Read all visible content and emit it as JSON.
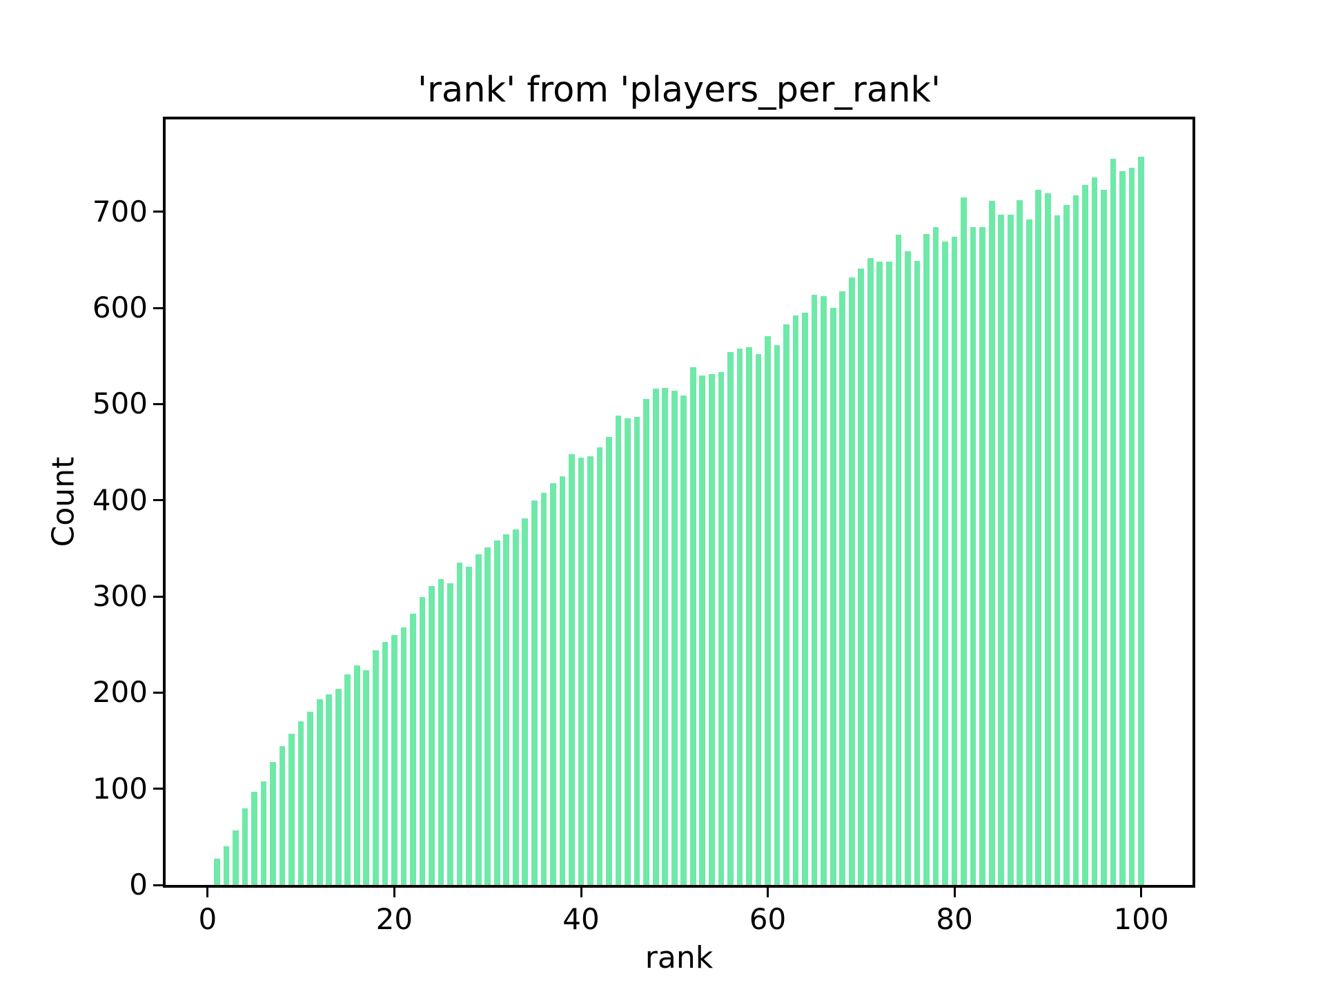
{
  "figure": {
    "background_color": "#ffffff",
    "text_color": "#000000"
  },
  "chart_data": {
    "type": "bar",
    "title": "'rank' from 'players_per_rank'",
    "xlabel": "rank",
    "ylabel": "Count",
    "bar_color": "#6ee9a8",
    "grid": false,
    "legend": null,
    "xlim": [
      -4.5,
      105.5
    ],
    "ylim": [
      0,
      796
    ],
    "x_ticks": [
      0,
      20,
      40,
      60,
      80,
      100
    ],
    "y_ticks": [
      0,
      100,
      200,
      300,
      400,
      500,
      600,
      700
    ],
    "bar_width_units": 0.65,
    "x": [
      1,
      2,
      3,
      4,
      5,
      6,
      7,
      8,
      9,
      10,
      11,
      12,
      13,
      14,
      15,
      16,
      17,
      18,
      19,
      20,
      21,
      22,
      23,
      24,
      25,
      26,
      27,
      28,
      29,
      30,
      31,
      32,
      33,
      34,
      35,
      36,
      37,
      38,
      39,
      40,
      41,
      42,
      43,
      44,
      45,
      46,
      47,
      48,
      49,
      50,
      51,
      52,
      53,
      54,
      55,
      56,
      57,
      58,
      59,
      60,
      61,
      62,
      63,
      64,
      65,
      66,
      67,
      68,
      69,
      70,
      71,
      72,
      73,
      74,
      75,
      76,
      77,
      78,
      79,
      80,
      81,
      82,
      83,
      84,
      85,
      86,
      87,
      88,
      89,
      90,
      91,
      92,
      93,
      94,
      95,
      96,
      97,
      98,
      99,
      100
    ],
    "values": [
      27,
      40,
      57,
      80,
      97,
      108,
      128,
      144,
      157,
      170,
      180,
      193,
      198,
      204,
      219,
      228,
      223,
      244,
      253,
      260,
      268,
      282,
      299,
      311,
      318,
      314,
      335,
      331,
      344,
      351,
      358,
      365,
      370,
      381,
      400,
      408,
      418,
      425,
      448,
      444,
      446,
      455,
      466,
      488,
      485,
      487,
      505,
      516,
      517,
      514,
      509,
      538,
      530,
      531,
      533,
      554,
      558,
      559,
      552,
      571,
      561,
      583,
      592,
      595,
      614,
      612,
      600,
      617,
      632,
      641,
      652,
      648,
      648,
      676,
      659,
      649,
      677,
      684,
      669,
      674,
      715,
      684,
      684,
      711,
      697,
      697,
      712,
      692,
      723,
      719,
      696,
      707,
      717,
      728,
      736,
      723,
      755,
      742,
      746,
      757
    ]
  }
}
